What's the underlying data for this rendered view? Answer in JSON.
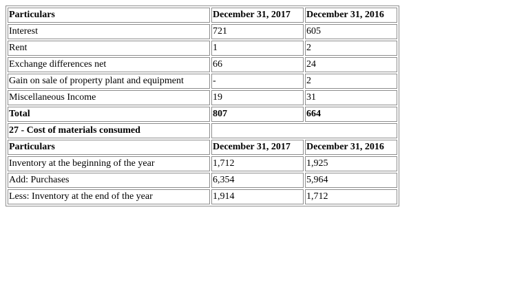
{
  "table1": {
    "header": [
      "Particulars",
      "December 31, 2017",
      "December 31, 2016"
    ],
    "rows": [
      [
        "Interest",
        "721",
        "605"
      ],
      [
        "Rent",
        "1",
        "2"
      ],
      [
        "Exchange differences net",
        "66",
        "24"
      ],
      [
        "Gain on sale of property plant and equipment",
        "-",
        "2"
      ],
      [
        "Miscellaneous Income",
        "19",
        "31"
      ]
    ],
    "total": [
      "Total",
      "807",
      "664"
    ]
  },
  "section2": {
    "title": "27 - Cost of materials consumed",
    "header": [
      "Particulars",
      "December 31, 2017",
      "December 31, 2016"
    ],
    "rows": [
      [
        "Inventory at the beginning of the year",
        "1,712",
        "1,925"
      ],
      [
        "Add: Purchases",
        "6,354",
        "5,964"
      ],
      [
        "Less: Inventory at the end of the year",
        "1,914",
        "1,712"
      ]
    ]
  }
}
